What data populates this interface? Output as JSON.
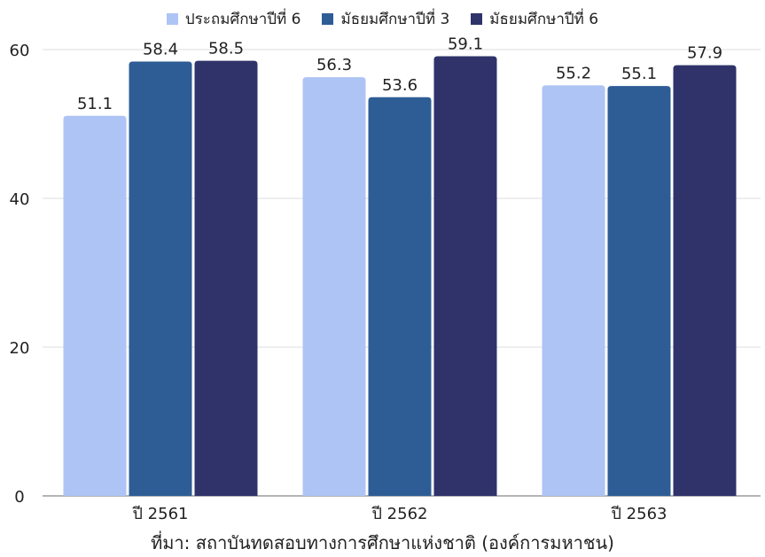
{
  "chart_data": {
    "type": "bar",
    "categories": [
      "ปี 2561",
      "ปี 2562",
      "ปี 2563"
    ],
    "series": [
      {
        "name": "ประถมศึกษาปีที่ 6",
        "values": [
          51.1,
          56.3,
          55.2
        ],
        "color": "#aec4f4"
      },
      {
        "name": "มัธยมศึกษาปีที่ 3",
        "values": [
          58.4,
          53.6,
          55.1
        ],
        "color": "#2e5d96"
      },
      {
        "name": "มัธยมศึกษาปีที่ 6",
        "values": [
          58.5,
          59.1,
          57.9
        ],
        "color": "#2f336a"
      }
    ],
    "yticks": [
      0,
      20,
      40,
      60
    ],
    "ylim": [
      0,
      60
    ],
    "grid": true,
    "legend_position": "top-center",
    "source_note": "ที่มา: สถาบันทดสอบทางการศึกษาแห่งชาติ (องค์การมหาชน)"
  }
}
